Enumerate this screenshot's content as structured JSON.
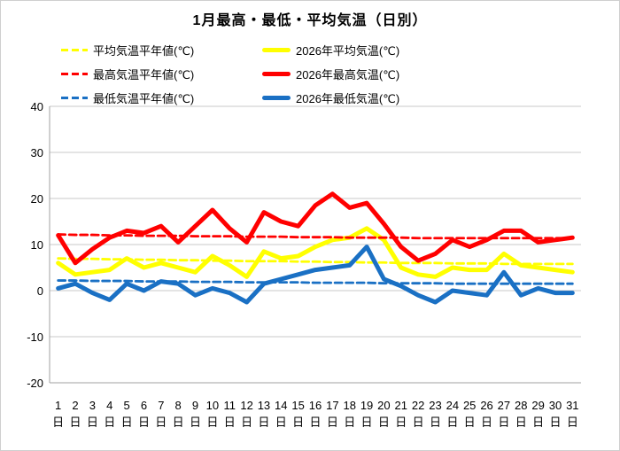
{
  "title": "1月最高・最低・平均気温（日別）",
  "chart_data": {
    "type": "line",
    "x_labels": [
      "1",
      "2",
      "3",
      "4",
      "5",
      "6",
      "7",
      "8",
      "9",
      "10",
      "11",
      "12",
      "13",
      "14",
      "15",
      "16",
      "17",
      "18",
      "19",
      "20",
      "21",
      "22",
      "23",
      "24",
      "25",
      "26",
      "27",
      "28",
      "29",
      "30",
      "31"
    ],
    "x_unit": "日",
    "ylim": [
      -20,
      40
    ],
    "yticks": [
      40,
      30,
      20,
      10,
      0,
      -10,
      -20
    ],
    "grid": true,
    "legend_position": "top-left",
    "grid_color": "#c9c9c9",
    "axis_color": "#a0a0a0",
    "text_color": "#000000",
    "series": [
      {
        "key": "avg-normal",
        "name": "平均気温平年値(℃)",
        "color": "#ffff00",
        "style": "dashed",
        "values": [
          7.0,
          6.9,
          6.9,
          6.8,
          6.8,
          6.7,
          6.7,
          6.6,
          6.6,
          6.5,
          6.5,
          6.4,
          6.4,
          6.4,
          6.3,
          6.3,
          6.2,
          6.2,
          6.1,
          6.1,
          6.0,
          6.0,
          6.0,
          5.9,
          5.9,
          5.9,
          5.8,
          5.8,
          5.8,
          5.8,
          5.8
        ]
      },
      {
        "key": "max-normal",
        "name": "最高気温平年値(℃)",
        "color": "#ff0000",
        "style": "dashed",
        "values": [
          12.2,
          12.1,
          12.1,
          12.0,
          12.0,
          11.9,
          11.9,
          11.9,
          11.8,
          11.8,
          11.8,
          11.7,
          11.7,
          11.7,
          11.6,
          11.6,
          11.6,
          11.5,
          11.5,
          11.5,
          11.5,
          11.4,
          11.4,
          11.4,
          11.4,
          11.4,
          11.4,
          11.4,
          11.4,
          11.4,
          11.4
        ]
      },
      {
        "key": "min-normal",
        "name": "最低気温平年値(℃)",
        "color": "#1a70c4",
        "style": "dashed",
        "values": [
          2.2,
          2.2,
          2.1,
          2.1,
          2.1,
          2.0,
          2.0,
          2.0,
          1.9,
          1.9,
          1.9,
          1.8,
          1.8,
          1.8,
          1.8,
          1.7,
          1.7,
          1.7,
          1.7,
          1.6,
          1.6,
          1.6,
          1.6,
          1.5,
          1.5,
          1.5,
          1.5,
          1.5,
          1.5,
          1.5,
          1.5
        ]
      },
      {
        "key": "avg-2026",
        "name": "2026年平均気温(℃)",
        "color": "#ffff00",
        "style": "solid",
        "values": [
          6,
          3.5,
          4,
          4.5,
          7,
          5,
          6,
          5,
          4,
          7.5,
          5.5,
          3,
          8.5,
          7,
          7.5,
          9.5,
          11,
          11.5,
          13.5,
          11,
          5,
          3.5,
          3,
          5,
          4.5,
          4.5,
          8,
          5.5,
          5,
          4.5,
          4
        ]
      },
      {
        "key": "max-2026",
        "name": "2026年最高気温(℃)",
        "color": "#ff0000",
        "style": "solid",
        "values": [
          12,
          6,
          9,
          11.5,
          13,
          12.5,
          14,
          10.5,
          14,
          17.5,
          13.5,
          10.5,
          17,
          15,
          14,
          18.5,
          21,
          18,
          19,
          14.5,
          9.5,
          6.5,
          8,
          11,
          9.5,
          11,
          13,
          13,
          10.5,
          11,
          11.5
        ]
      },
      {
        "key": "min-2026",
        "name": "2026年最低気温(℃)",
        "color": "#1a70c4",
        "style": "solid",
        "values": [
          0.5,
          1.5,
          -0.5,
          -2,
          1.5,
          0,
          2,
          1.5,
          -1,
          0.5,
          -0.5,
          -2.5,
          1.5,
          2.5,
          3.5,
          4.5,
          5,
          5.5,
          9.5,
          2.5,
          1,
          -1,
          -2.5,
          0,
          -0.5,
          -1,
          4,
          -1,
          0.5,
          -0.5,
          -0.5
        ]
      }
    ],
    "legend_display_order": [
      0,
      3,
      1,
      4,
      2,
      5
    ],
    "draw_order": [
      0,
      2,
      3,
      5,
      1,
      4
    ]
  }
}
